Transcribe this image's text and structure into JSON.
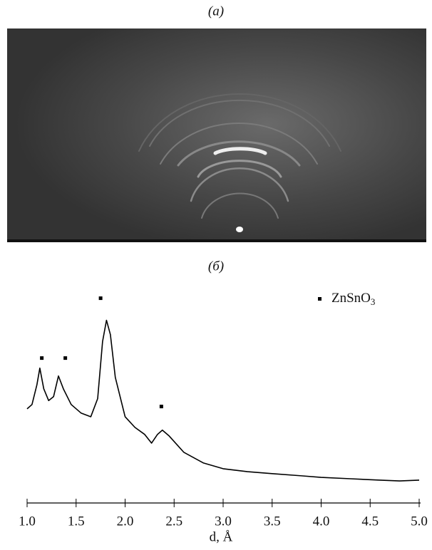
{
  "panels": {
    "a": "(a)",
    "b": "(б)"
  },
  "chart_data": {
    "type": "line",
    "xlabel": "d, Å",
    "xlim": [
      1.0,
      5.0
    ],
    "xticks": [
      {
        "value": 1.0,
        "label": "1.0"
      },
      {
        "value": 1.5,
        "label": "1.5"
      },
      {
        "value": 2.0,
        "label": "2.0"
      },
      {
        "value": 2.5,
        "label": "2.5"
      },
      {
        "value": 3.0,
        "label": "3.0"
      },
      {
        "value": 3.5,
        "label": "3.5"
      },
      {
        "value": 4.0,
        "label": "4.0"
      },
      {
        "value": 4.5,
        "label": "4.5"
      },
      {
        "value": 5.0,
        "label": "5.0"
      }
    ],
    "ylim": [
      0,
      110
    ],
    "series": [
      {
        "color": "#000000",
        "x": [
          1.0,
          1.05,
          1.1,
          1.13,
          1.17,
          1.22,
          1.27,
          1.32,
          1.37,
          1.45,
          1.55,
          1.65,
          1.72,
          1.77,
          1.81,
          1.85,
          1.9,
          2.0,
          2.1,
          2.2,
          2.27,
          2.33,
          2.38,
          2.45,
          2.6,
          2.8,
          3.0,
          3.25,
          3.5,
          3.8,
          4.0,
          4.3,
          4.6,
          4.8,
          5.0
        ],
        "values": [
          47.8,
          50.0,
          60.0,
          68.5,
          58.0,
          52.0,
          54.0,
          64.5,
          58.0,
          50.0,
          45.7,
          43.8,
          53.0,
          82.0,
          92.8,
          85.5,
          63.8,
          43.8,
          38.4,
          34.8,
          30.4,
          34.8,
          37.0,
          34.0,
          25.7,
          20.3,
          17.4,
          15.9,
          14.9,
          13.8,
          13.0,
          12.3,
          11.6,
          11.2,
          11.6
        ]
      }
    ],
    "markers": {
      "name": "ZnSnO3",
      "color": "#000000",
      "x": [
        1.15,
        1.39,
        1.75,
        2.37
      ],
      "values": [
        73.6,
        73.6,
        104.0,
        49.0
      ]
    }
  }
}
